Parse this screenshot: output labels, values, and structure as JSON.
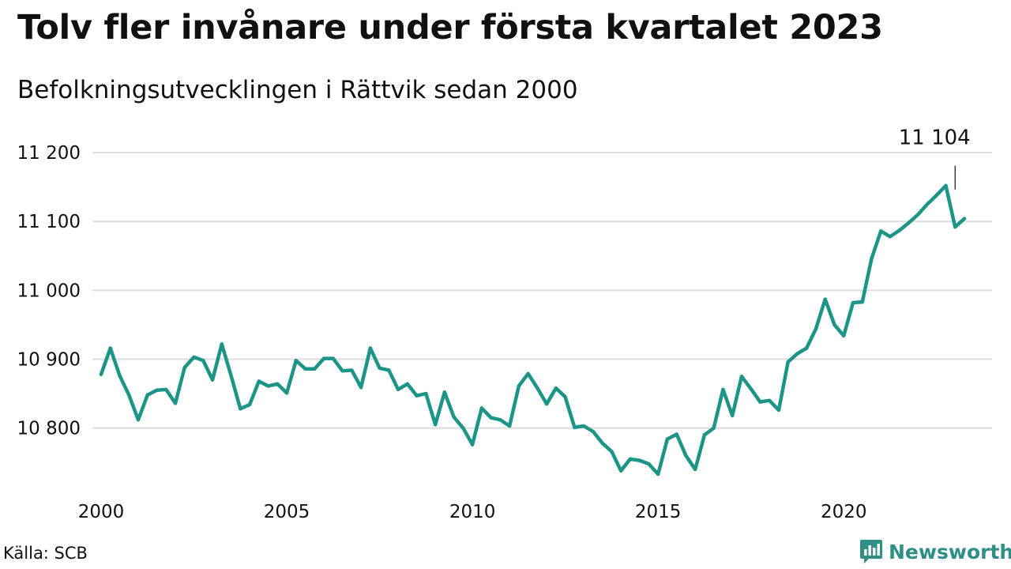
{
  "title": "Tolv fler invånare under första kvartalet 2023",
  "subtitle": "Befolkningsutvecklingen i Rättvik sedan 2000",
  "source": "Källa: SCB",
  "brand": {
    "name": "Newsworthy",
    "icon": "newsworthy-logo-icon",
    "color": "#2f8f86"
  },
  "colors": {
    "line": "#1c9488",
    "grid": "#dddddd",
    "text": "#111111"
  },
  "chart_data": {
    "type": "line",
    "title": "",
    "xlabel": "",
    "ylabel": "",
    "xlim": [
      2000,
      2023.25
    ],
    "ylim": [
      10725,
      11215
    ],
    "yticks": [
      {
        "value": 10800,
        "label": "10 800"
      },
      {
        "value": 10900,
        "label": "10 900"
      },
      {
        "value": 11000,
        "label": "11 000"
      },
      {
        "value": 11100,
        "label": "11 100"
      },
      {
        "value": 11200,
        "label": "11 200"
      }
    ],
    "xticks": [
      {
        "value": 2000,
        "label": "2000"
      },
      {
        "value": 2005,
        "label": "2005"
      },
      {
        "value": 2010,
        "label": "2010"
      },
      {
        "value": 2015,
        "label": "2015"
      },
      {
        "value": 2020,
        "label": "2020"
      }
    ],
    "grid": true,
    "legend": "none",
    "annotation": {
      "x": 2023.0,
      "value": 11104,
      "label": "11 104"
    },
    "series": [
      {
        "x_start": 2000.0,
        "x_step": 0.25,
        "values": [
          10878,
          10916,
          10876,
          10848,
          10812,
          10848,
          10855,
          10856,
          10836,
          10888,
          10903,
          10898,
          10870,
          10922,
          10876,
          10828,
          10834,
          10868,
          10861,
          10864,
          10851,
          10898,
          10886,
          10886,
          10901,
          10901,
          10883,
          10884,
          10859,
          10916,
          10887,
          10884,
          10856,
          10864,
          10847,
          10850,
          10805,
          10852,
          10816,
          10800,
          10776,
          10829,
          10815,
          10812,
          10803,
          10861,
          10879,
          10858,
          10835,
          10858,
          10845,
          10801,
          10803,
          10795,
          10778,
          10766,
          10738,
          10755,
          10753,
          10748,
          10733,
          10784,
          10791,
          10760,
          10740,
          10790,
          10800,
          10856,
          10818,
          10875,
          10857,
          10838,
          10840,
          10826,
          10896,
          10908,
          10916,
          10944,
          10987,
          10950,
          10934,
          10982,
          10983,
          11046,
          11086,
          11078,
          11087,
          11098,
          11110,
          11125,
          11138,
          11152,
          11092,
          11104
        ]
      }
    ]
  }
}
